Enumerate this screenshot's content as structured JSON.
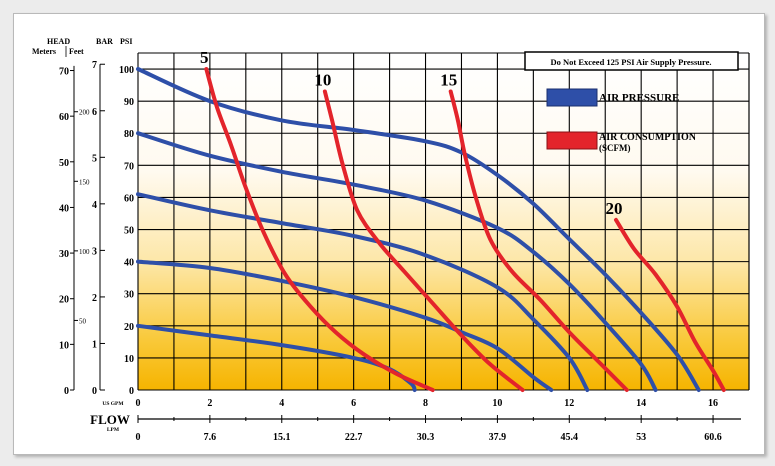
{
  "chart_data": {
    "type": "line",
    "note": "Do Not Exceed 125 PSI Air Supply Pressure.",
    "axis_headers": {
      "head": "HEAD",
      "meters": "Meters",
      "feet": "Feet",
      "bar": "BAR",
      "psi": "PSI"
    },
    "x_axis": {
      "label": "FLOW",
      "usgpm_unit": "US GPM",
      "lpm_unit": "LPM",
      "usgpm_ticks": [
        "0",
        "2",
        "4",
        "6",
        "8",
        "10",
        "12",
        "14",
        "16"
      ],
      "lpm_ticks": [
        "0",
        "7.6",
        "15.1",
        "22.7",
        "30.3",
        "37.9",
        "45.4",
        "53",
        "60.6"
      ],
      "xlim": [
        0,
        17
      ]
    },
    "y_axis": {
      "psi_ticks": [
        "0",
        "10",
        "20",
        "30",
        "40",
        "50",
        "60",
        "70",
        "80",
        "90",
        "100"
      ],
      "bar_ticks": [
        "0",
        "1",
        "2",
        "3",
        "4",
        "5",
        "6",
        "7"
      ],
      "meters_ticks": [
        "0",
        "10",
        "20",
        "30",
        "40",
        "50",
        "60",
        "70"
      ],
      "feet_ticks": [
        "50",
        "100",
        "150",
        "200"
      ],
      "ylim": [
        0,
        105
      ]
    },
    "grid": true,
    "legend": {
      "placement": "top-right",
      "entries": [
        {
          "label": "AIR PRESSURE",
          "color": "#2e4fa8"
        },
        {
          "label": "AIR CONSUMPTION",
          "sublabel": "(SCFM)",
          "color": "#e3242b"
        }
      ]
    },
    "series": [
      {
        "kind": "air_pressure",
        "points": [
          [
            0,
            100
          ],
          [
            2,
            90
          ],
          [
            4,
            84
          ],
          [
            6,
            81
          ],
          [
            8,
            77.5
          ],
          [
            9,
            74
          ],
          [
            10,
            67
          ],
          [
            11,
            58
          ],
          [
            12,
            47
          ],
          [
            13,
            36
          ],
          [
            14,
            24
          ],
          [
            15,
            11
          ],
          [
            15.6,
            0
          ]
        ]
      },
      {
        "kind": "air_pressure",
        "points": [
          [
            0,
            80
          ],
          [
            2,
            73
          ],
          [
            4,
            68
          ],
          [
            6,
            64
          ],
          [
            8,
            59
          ],
          [
            10,
            50.5
          ],
          [
            11,
            43
          ],
          [
            12,
            33
          ],
          [
            13,
            21
          ],
          [
            14,
            8
          ],
          [
            14.4,
            0
          ]
        ]
      },
      {
        "kind": "air_pressure",
        "points": [
          [
            0,
            61
          ],
          [
            2,
            56
          ],
          [
            4,
            52
          ],
          [
            6,
            48
          ],
          [
            8,
            42
          ],
          [
            10,
            32
          ],
          [
            11,
            22
          ],
          [
            12,
            10
          ],
          [
            12.5,
            0
          ]
        ]
      },
      {
        "kind": "air_pressure",
        "points": [
          [
            0,
            40
          ],
          [
            2,
            38
          ],
          [
            4,
            34
          ],
          [
            6,
            29
          ],
          [
            8,
            22.5
          ],
          [
            9,
            18
          ],
          [
            10,
            13
          ],
          [
            11,
            4
          ],
          [
            11.5,
            0
          ]
        ]
      },
      {
        "kind": "air_pressure",
        "points": [
          [
            0,
            20
          ],
          [
            2,
            17
          ],
          [
            4,
            14
          ],
          [
            6,
            10
          ],
          [
            7,
            6.5
          ],
          [
            7.6,
            2
          ],
          [
            7.7,
            0
          ]
        ]
      },
      {
        "kind": "air_consumption",
        "label": "5",
        "points": [
          [
            1.9,
            100
          ],
          [
            2.2,
            88
          ],
          [
            2.6,
            76
          ],
          [
            3.0,
            63
          ],
          [
            3.5,
            49
          ],
          [
            4.1,
            36
          ],
          [
            4.8,
            26
          ],
          [
            5.5,
            18
          ],
          [
            6.3,
            11
          ],
          [
            7.2,
            5
          ],
          [
            8.2,
            0
          ]
        ]
      },
      {
        "kind": "air_consumption",
        "label": "10",
        "points": [
          [
            5.2,
            93
          ],
          [
            5.4,
            84
          ],
          [
            5.7,
            70
          ],
          [
            6.1,
            56
          ],
          [
            6.7,
            46
          ],
          [
            7.4,
            37
          ],
          [
            8.2,
            27
          ],
          [
            9.0,
            17
          ],
          [
            9.8,
            8
          ],
          [
            10.7,
            0
          ]
        ]
      },
      {
        "kind": "air_consumption",
        "label": "15",
        "points": [
          [
            8.7,
            93
          ],
          [
            8.9,
            84
          ],
          [
            9.1,
            73
          ],
          [
            9.4,
            60
          ],
          [
            9.8,
            47
          ],
          [
            10.4,
            37
          ],
          [
            11.2,
            28
          ],
          [
            12.0,
            18
          ],
          [
            12.8,
            9
          ],
          [
            13.6,
            0
          ]
        ]
      },
      {
        "kind": "air_consumption",
        "label": "20",
        "points": [
          [
            13.3,
            53
          ],
          [
            13.8,
            44
          ],
          [
            14.4,
            36
          ],
          [
            15.0,
            26
          ],
          [
            15.5,
            15
          ],
          [
            16.0,
            6
          ],
          [
            16.3,
            0
          ]
        ]
      }
    ]
  }
}
